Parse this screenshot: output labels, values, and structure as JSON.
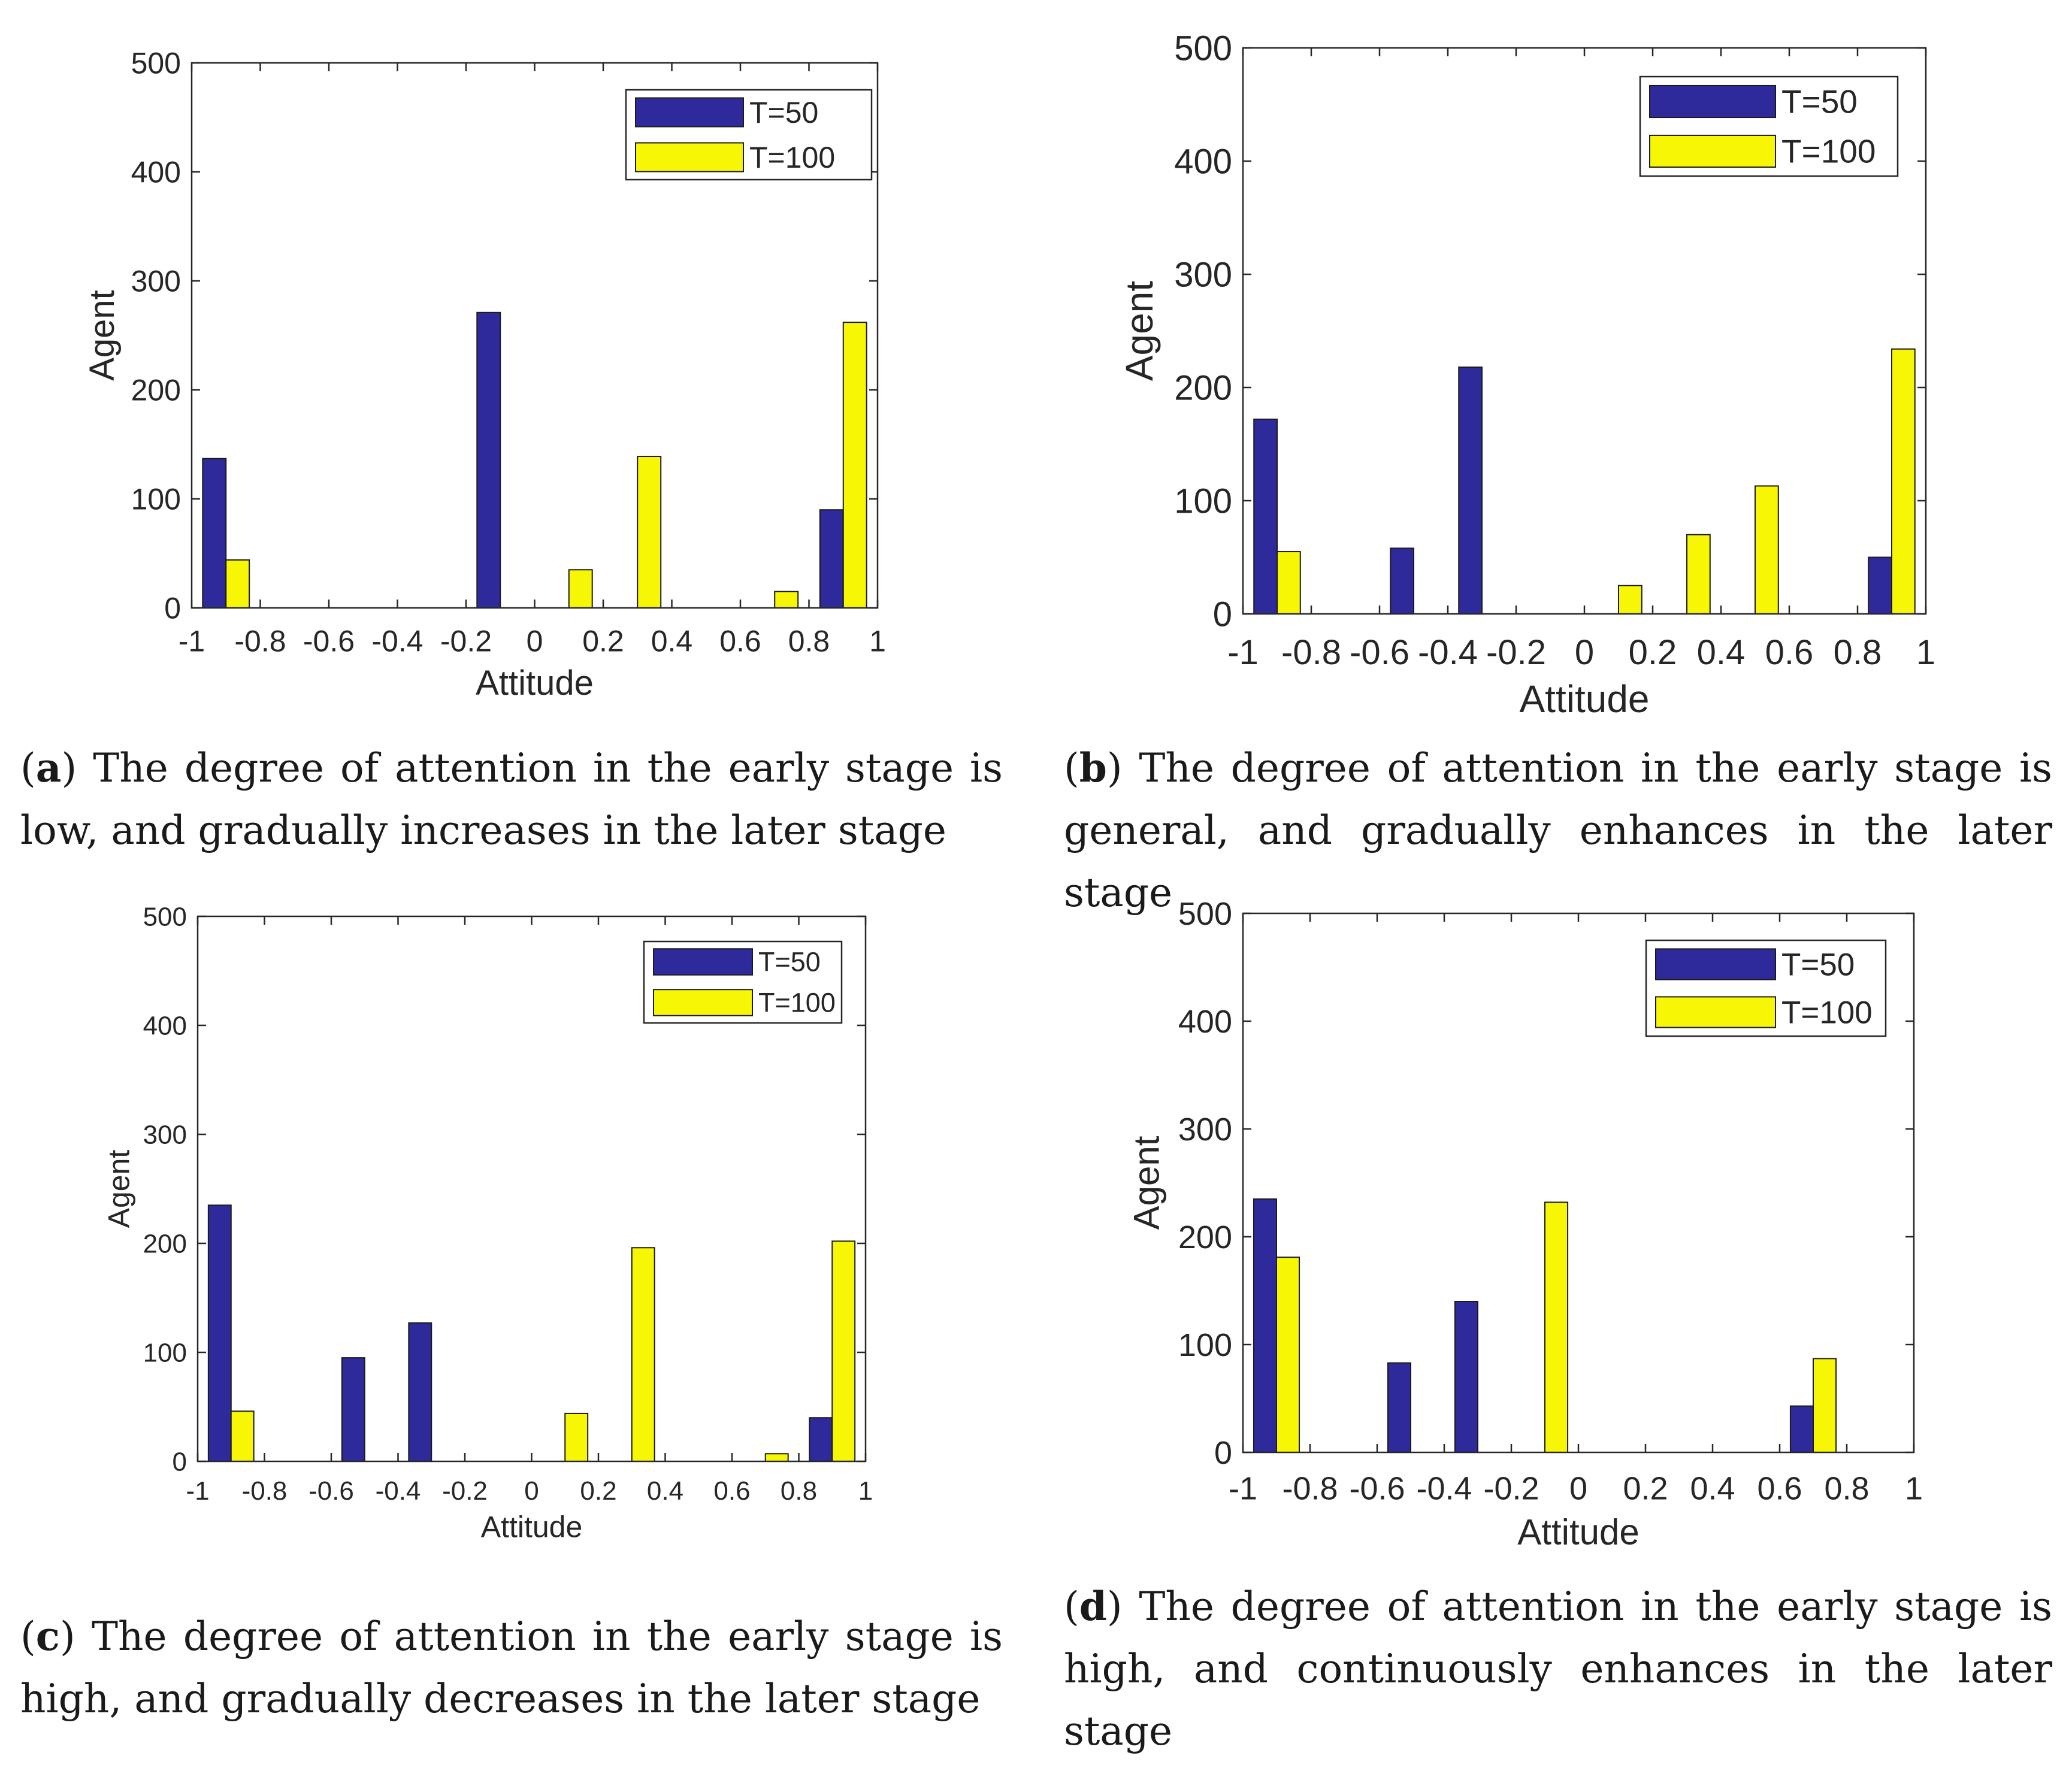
{
  "colors": {
    "t50": "#2e2a9b",
    "t100": "#f7f705",
    "axis": "#262626",
    "frame": "#262626"
  },
  "figures": [
    {
      "id": "a",
      "caption": {
        "label": "a",
        "text": "The degree of attention in the early stage is low, and gradually increases in the later stage"
      }
    },
    {
      "id": "b",
      "caption": {
        "label": "b",
        "text": "The degree of attention in the early stage is general, and gradually enhances in the later stage"
      }
    },
    {
      "id": "c",
      "caption": {
        "label": "c",
        "text": "The degree of attention in the early stage is high, and gradually decreases in the later stage"
      }
    },
    {
      "id": "d",
      "caption": {
        "label": "d",
        "text": "The degree of attention in the early stage is high, and continuously enhances in the later stage"
      }
    }
  ],
  "chart_data": [
    {
      "type": "bar",
      "xlabel": "Attitude",
      "ylabel": "Agent",
      "xlim": [
        -1,
        1
      ],
      "ylim": [
        0,
        500
      ],
      "xticks": [
        "-1",
        "-0.8",
        "-0.6",
        "-0.4",
        "-0.2",
        "0",
        "0.2",
        "0.4",
        "0.6",
        "0.8",
        "1"
      ],
      "yticks": [
        "0",
        "100",
        "200",
        "300",
        "400",
        "500"
      ],
      "bin_centers": [
        -0.9,
        -0.7,
        -0.5,
        -0.3,
        -0.1,
        0.1,
        0.3,
        0.5,
        0.7,
        0.9
      ],
      "legend_position": "top-right",
      "series": [
        {
          "name": "T=50",
          "values": [
            137,
            0,
            0,
            0,
            271,
            0,
            0,
            0,
            0,
            90
          ]
        },
        {
          "name": "T=100",
          "values": [
            44,
            0,
            0,
            0,
            0,
            35,
            139,
            0,
            15,
            262
          ]
        }
      ]
    },
    {
      "type": "bar",
      "xlabel": "Attitude",
      "ylabel": "Agent",
      "xlim": [
        -1,
        1
      ],
      "ylim": [
        0,
        500
      ],
      "xticks": [
        "-1",
        "-0.8",
        "-0.6",
        "-0.4",
        "-0.2",
        "0",
        "0.2",
        "0.4",
        "0.6",
        "0.8",
        "1"
      ],
      "yticks": [
        "0",
        "100",
        "200",
        "300",
        "400",
        "500"
      ],
      "bin_centers": [
        -0.9,
        -0.7,
        -0.5,
        -0.3,
        -0.1,
        0.1,
        0.3,
        0.5,
        0.7,
        0.9
      ],
      "legend_position": "top-right",
      "series": [
        {
          "name": "T=50",
          "values": [
            172,
            0,
            58,
            218,
            0,
            0,
            0,
            0,
            0,
            50
          ]
        },
        {
          "name": "T=100",
          "values": [
            55,
            0,
            0,
            0,
            0,
            25,
            70,
            113,
            0,
            234
          ]
        }
      ]
    },
    {
      "type": "bar",
      "xlabel": "Attitude",
      "ylabel": "Agent",
      "xlim": [
        -1,
        1
      ],
      "ylim": [
        0,
        500
      ],
      "xticks": [
        "-1",
        "-0.8",
        "-0.6",
        "-0.4",
        "-0.2",
        "0",
        "0.2",
        "0.4",
        "0.6",
        "0.8",
        "1"
      ],
      "yticks": [
        "0",
        "100",
        "200",
        "300",
        "400",
        "500"
      ],
      "bin_centers": [
        -0.9,
        -0.7,
        -0.5,
        -0.3,
        -0.1,
        0.1,
        0.3,
        0.5,
        0.7,
        0.9
      ],
      "legend_position": "top-right",
      "series": [
        {
          "name": "T=50",
          "values": [
            235,
            0,
            95,
            127,
            0,
            0,
            0,
            0,
            0,
            40
          ]
        },
        {
          "name": "T=100",
          "values": [
            46,
            0,
            0,
            0,
            0,
            44,
            196,
            0,
            7,
            202
          ]
        }
      ]
    },
    {
      "type": "bar",
      "xlabel": "Attitude",
      "ylabel": "Agent",
      "xlim": [
        -1,
        1
      ],
      "ylim": [
        0,
        500
      ],
      "xticks": [
        "-1",
        "-0.8",
        "-0.6",
        "-0.4",
        "-0.2",
        "0",
        "0.2",
        "0.4",
        "0.6",
        "0.8",
        "1"
      ],
      "yticks": [
        "0",
        "100",
        "200",
        "300",
        "400",
        "500"
      ],
      "bin_centers": [
        -0.9,
        -0.7,
        -0.5,
        -0.3,
        -0.1,
        0.1,
        0.3,
        0.5,
        0.7,
        0.9
      ],
      "legend_position": "top-right",
      "series": [
        {
          "name": "T=50",
          "values": [
            235,
            0,
            83,
            140,
            0,
            0,
            0,
            0,
            43,
            0
          ]
        },
        {
          "name": "T=100",
          "values": [
            181,
            0,
            0,
            0,
            232,
            0,
            0,
            0,
            87,
            0
          ]
        }
      ]
    }
  ]
}
